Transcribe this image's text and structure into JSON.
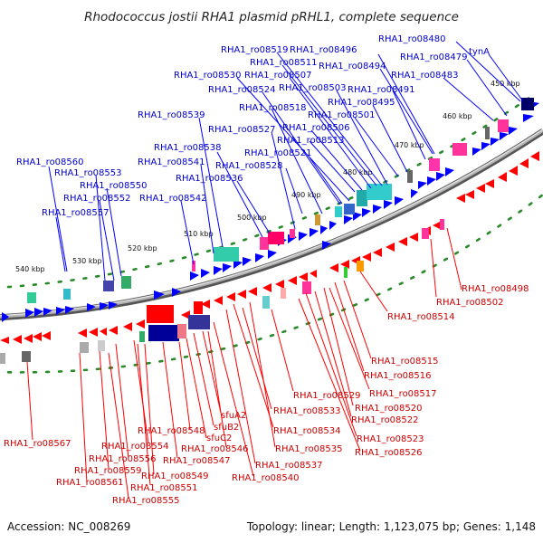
{
  "title": "Rhodococcus jostii RHA1 plasmid pRHL1, complete sequence",
  "accession": "Accession: NC_008269",
  "topology": "Topology: linear; Length: 1,123,075 bp; Genes: 1,148",
  "colors": {
    "backbone": "#888888",
    "forward_arrow": "#0000ff",
    "reverse_arrow": "#ff0000",
    "forward_label": "#0000cc",
    "reverse_label": "#cc0000",
    "tick_dots": "#2a8a2a"
  },
  "scale": {
    "ticks": [
      "450 kbp",
      "460 kbp",
      "470 kbp",
      "480 kbp",
      "490 kbp",
      "500 kbp",
      "510 kbp",
      "520 kbp",
      "530 kbp",
      "540 kbp"
    ]
  },
  "forward_labels": [
    "RHA1_ro08480",
    "tynA",
    "RHA1_ro08479",
    "RHA1_ro08483",
    "RHA1_ro08496",
    "RHA1_ro08494",
    "RHA1_ro08519",
    "RHA1_ro08511",
    "RHA1_ro08507",
    "RHA1_ro08530",
    "RHA1_ro08503",
    "RHA1_ro08491",
    "RHA1_ro08524",
    "RHA1_ro08495",
    "RHA1_ro08518",
    "RHA1_ro08501",
    "RHA1_ro08539",
    "RHA1_ro08527",
    "RHA1_ro08506",
    "RHA1_ro08513",
    "RHA1_ro08538",
    "RHA1_ro08521",
    "RHA1_ro08541",
    "RHA1_ro08528",
    "RHA1_ro08560",
    "RHA1_ro08536",
    "RHA1_ro08553",
    "RHA1_ro08550",
    "RHA1_ro08542",
    "RHA1_ro08552",
    "RHA1_ro08557"
  ],
  "reverse_labels": [
    "RHA1_ro08498",
    "RHA1_ro08502",
    "RHA1_ro08514",
    "RHA1_ro08515",
    "RHA1_ro08516",
    "RHA1_ro08517",
    "RHA1_ro08529",
    "RHA1_ro08520",
    "RHA1_ro08533",
    "RHA1_ro08522",
    "sfuA2",
    "sfuB2",
    "RHA1_ro08548",
    "RHA1_ro08534",
    "RHA1_ro08523",
    "sfuC2",
    "RHA1_ro08567",
    "RHA1_ro08554",
    "RHA1_ro08547",
    "RHA1_ro08546",
    "RHA1_ro08535",
    "RHA1_ro08556",
    "RHA1_ro08526",
    "RHA1_ro08537",
    "RHA1_ro08559",
    "RHA1_ro08549",
    "RHA1_ro08540",
    "RHA1_ro08561",
    "RHA1_ro08551",
    "RHA1_ro08555"
  ]
}
